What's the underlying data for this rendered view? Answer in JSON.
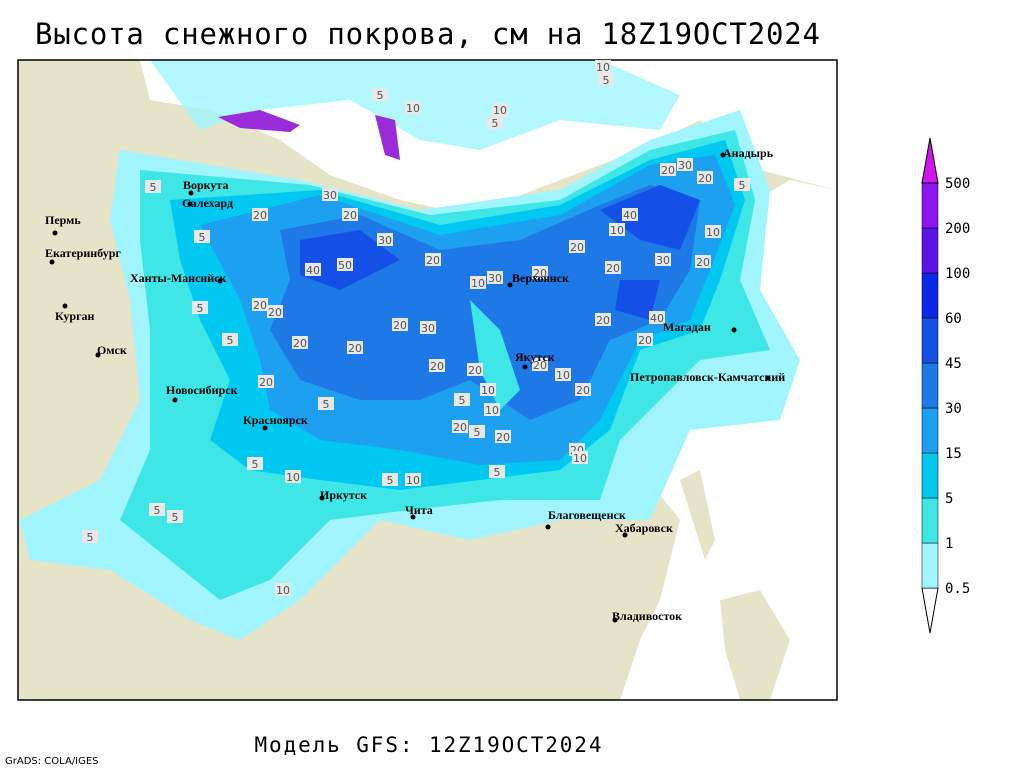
{
  "title": "Высота снежного покрова, см на 18Z19OCT2024",
  "footer": "Модель GFS: 12Z19OCT2024",
  "credit": "GrADS: COLA/IGES",
  "cities": [
    "Воркута",
    "Салехард",
    "Пермь",
    "Екатеринбург",
    "Ханты-Мансийск",
    "Курган",
    "Омск",
    "Новосибирск",
    "Красноярск",
    "Иркутск",
    "Чита",
    "Благовещенск",
    "Хабаровск",
    "Владивосток",
    "Якутск",
    "Верхоянск",
    "Магадан",
    "Петропавловск-Камчатский",
    "Анадырь"
  ],
  "contour_labels": [
    10,
    5,
    5,
    10,
    10,
    5,
    30,
    20,
    20,
    30,
    20,
    40,
    50,
    10,
    30,
    20,
    20,
    20,
    10,
    40,
    30,
    20,
    10,
    20,
    30,
    20,
    5,
    5,
    20,
    20,
    5,
    20,
    30,
    20,
    20,
    20,
    20,
    20,
    40,
    20,
    20,
    10,
    20,
    10,
    5,
    10,
    5,
    20,
    20,
    20,
    10,
    5,
    20,
    5,
    10,
    5,
    10,
    5,
    5,
    5,
    5,
    10,
    5,
    5
  ],
  "legend": {
    "levels": [
      0.5,
      1,
      5,
      15,
      30,
      45,
      60,
      100,
      200,
      500
    ],
    "colors": [
      "#ffffff",
      "#a0f5ff",
      "#3ee6e6",
      "#00c8f0",
      "#1ea0f0",
      "#1e78e6",
      "#1450e6",
      "#0a28e6",
      "#5a14e6",
      "#8c14f0",
      "#d214f0"
    ]
  }
}
